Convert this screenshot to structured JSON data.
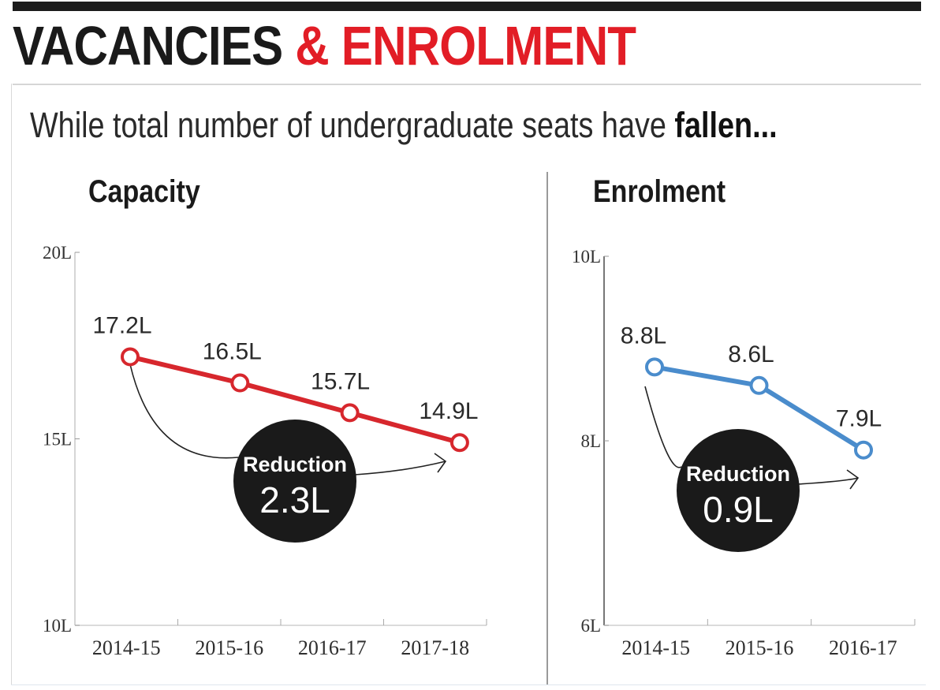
{
  "header": {
    "title_part1": "VACANCIES",
    "title_part2": "& ENROLMENT",
    "subtitle_regular": "While total number of undergraduate seats have ",
    "subtitle_bold": "fallen..."
  },
  "colors": {
    "title_dark": "#1a1a1a",
    "title_accent": "#e21d26",
    "capacity_series": "#d7272d",
    "enrolment_series": "#4a8ccc",
    "bubble": "#1a1a1a"
  },
  "chart_data": [
    {
      "type": "line",
      "title": "Capacity",
      "categories": [
        "2014-15",
        "2015-16",
        "2016-17",
        "2017-18"
      ],
      "series": [
        {
          "name": "Capacity",
          "values": [
            17.2,
            16.5,
            15.7,
            14.9
          ]
        }
      ],
      "data_labels": [
        "17.2L",
        "16.5L",
        "15.7L",
        "14.9L"
      ],
      "ylim": [
        10,
        20
      ],
      "yticks": [
        10,
        15,
        20
      ],
      "ytick_labels": [
        "10L",
        "15L",
        "20L"
      ],
      "xlabel": "",
      "ylabel": "",
      "grid": false,
      "annotation": {
        "label": "Reduction",
        "value": "2.3L"
      }
    },
    {
      "type": "line",
      "title": "Enrolment",
      "categories": [
        "2014-15",
        "2015-16",
        "2016-17"
      ],
      "series": [
        {
          "name": "Enrolment",
          "values": [
            8.8,
            8.6,
            7.9
          ]
        }
      ],
      "data_labels": [
        "8.8L",
        "8.6L",
        "7.9L"
      ],
      "ylim": [
        6,
        10
      ],
      "yticks": [
        6,
        8,
        10
      ],
      "ytick_labels": [
        "6L",
        "8L",
        "10L"
      ],
      "xlabel": "",
      "ylabel": "",
      "grid": false,
      "annotation": {
        "label": "Reduction",
        "value": "0.9L"
      }
    }
  ]
}
